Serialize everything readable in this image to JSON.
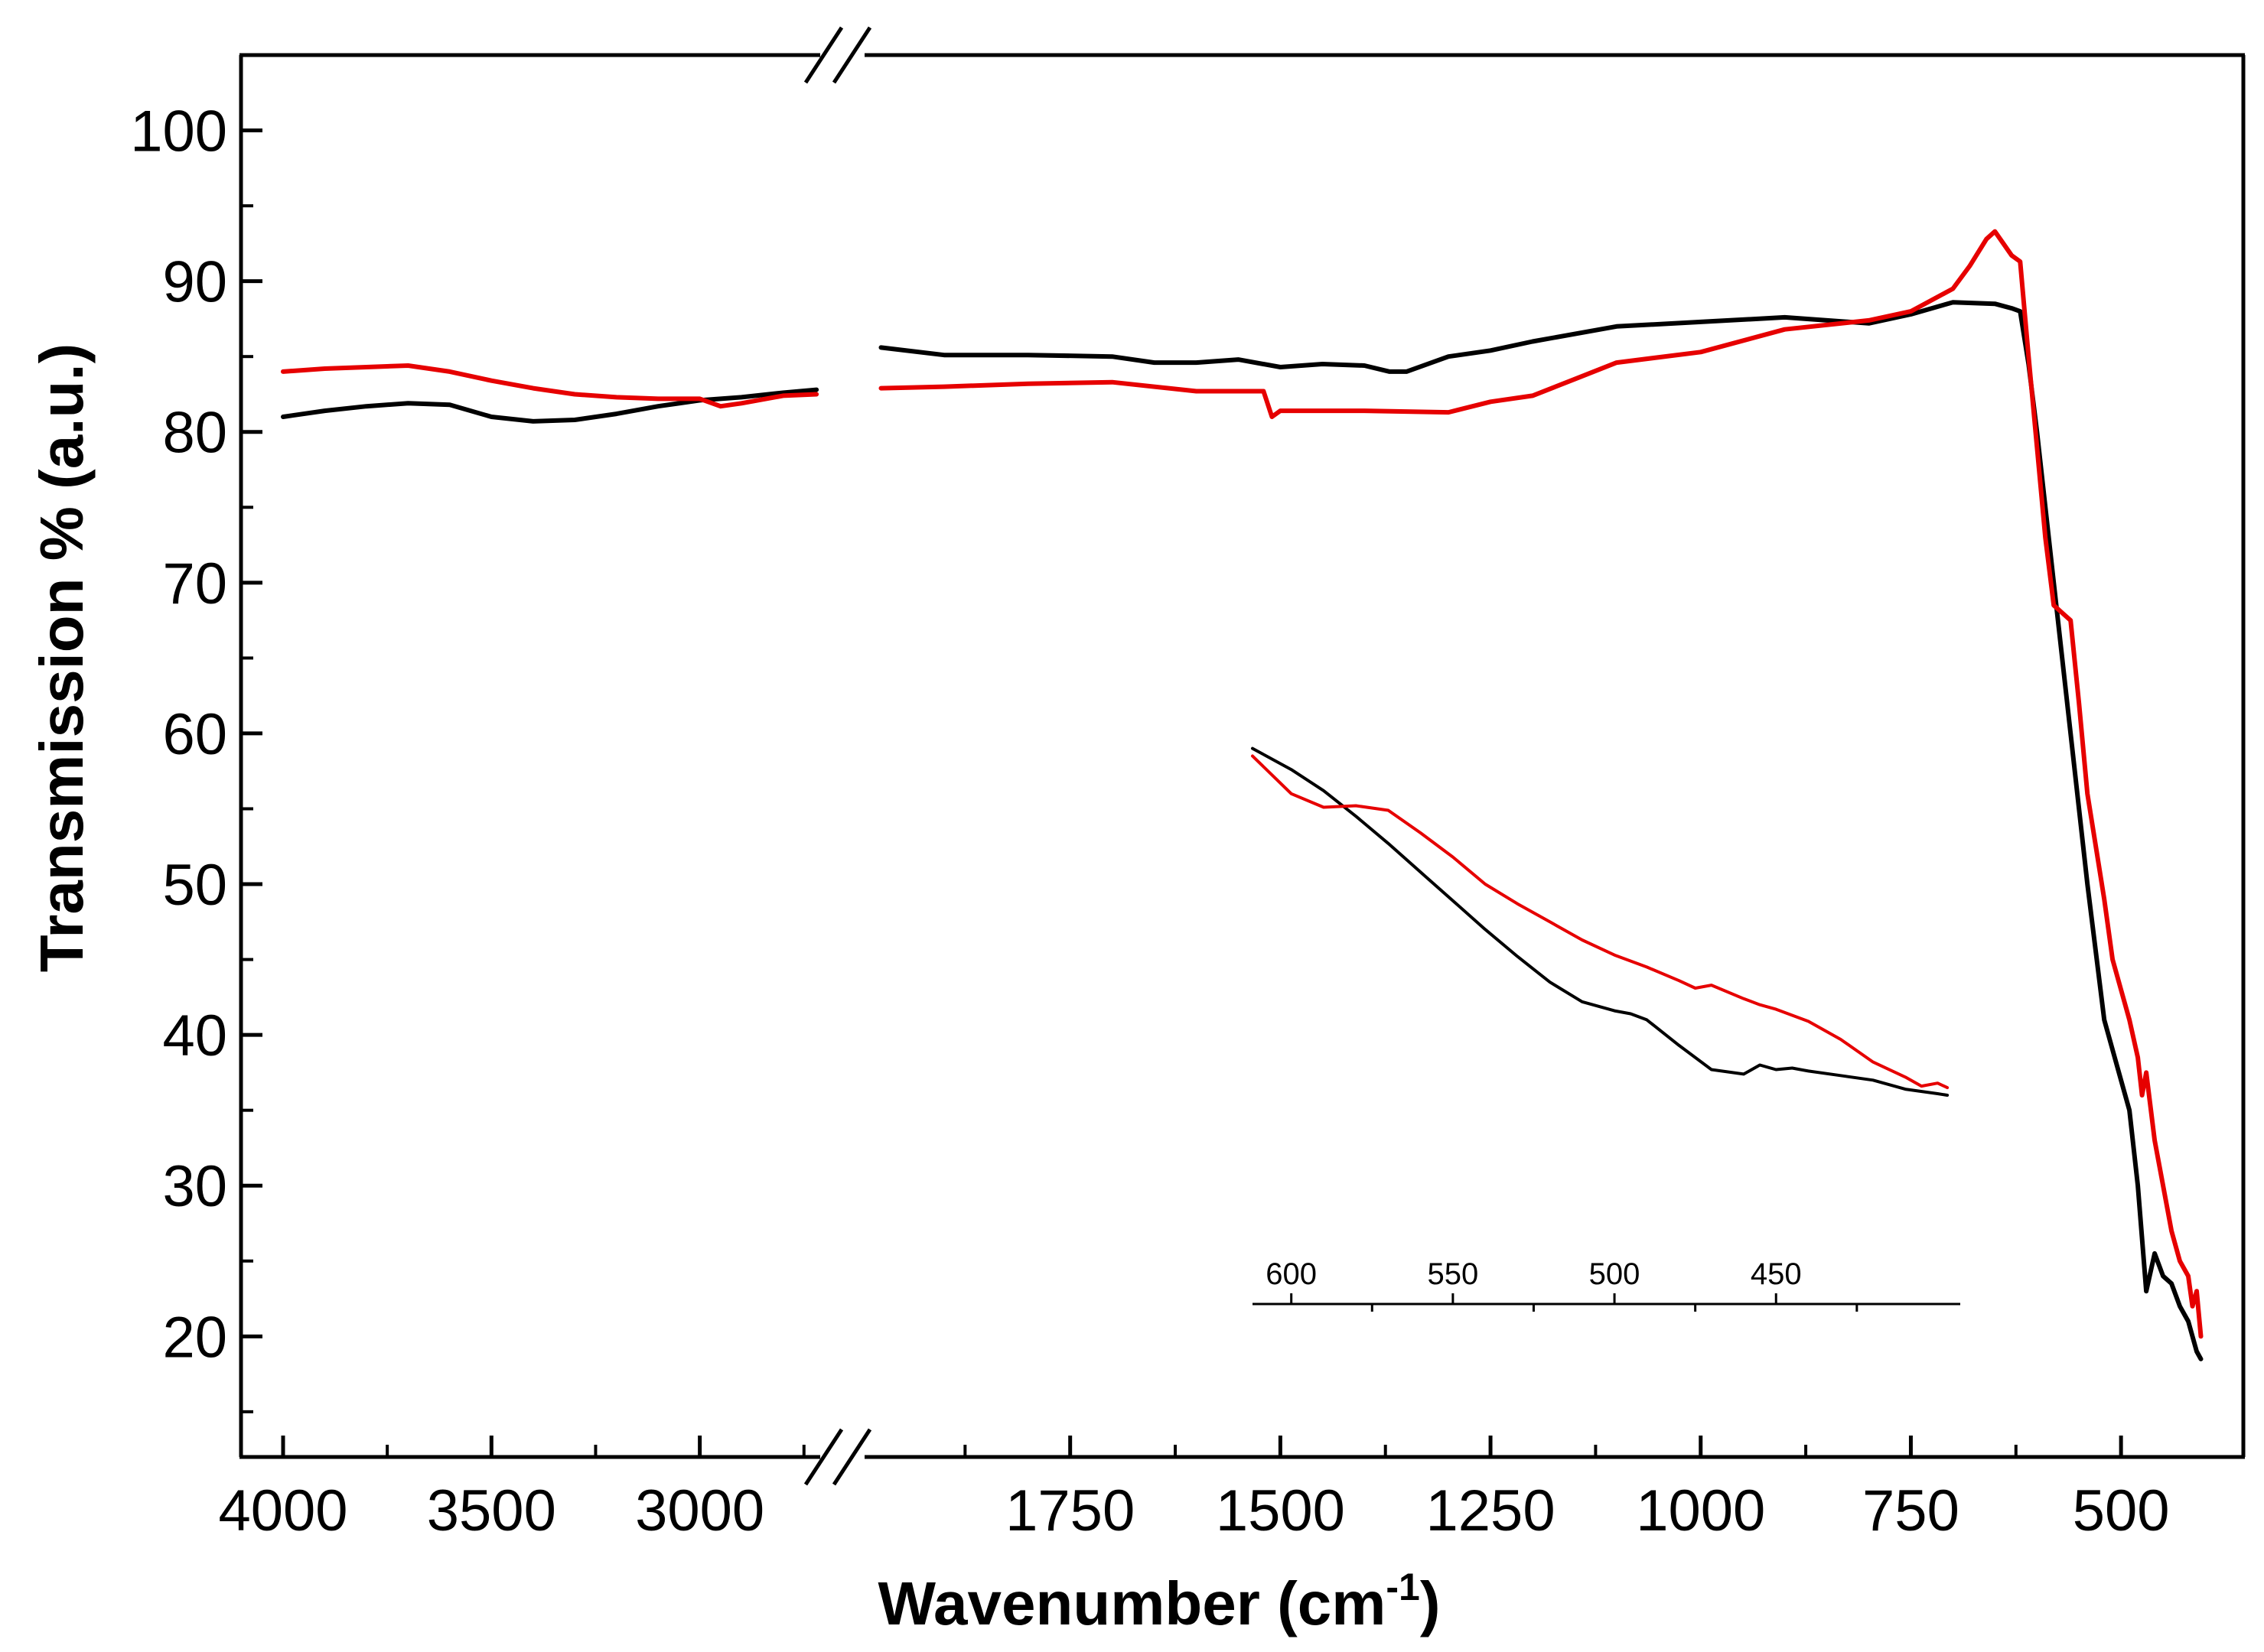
{
  "chart_data": {
    "type": "line",
    "title": "",
    "xlabel": "Wavenumber (cm",
    "xlabel_superscript": "-1",
    "xlabel_suffix": ")",
    "ylabel": "Transmission % (a.u.)",
    "x_axis": "reversed, broken",
    "x_segments": [
      {
        "range": [
          4000,
          2700
        ],
        "ticks": [
          4000,
          3500,
          3000
        ]
      },
      {
        "range": [
          2000,
          400
        ],
        "ticks": [
          1750,
          1500,
          1250,
          1000,
          750,
          500
        ]
      }
    ],
    "ylim": [
      12,
      105
    ],
    "yticks": [
      20,
      30,
      40,
      50,
      60,
      70,
      80,
      90,
      100
    ],
    "grid": false,
    "legend": "none",
    "series": [
      {
        "color": "#000000",
        "segments": [
          {
            "x": [
              4000,
              3900,
              3800,
              3700,
              3600,
              3500,
              3400,
              3300,
              3200,
              3100,
              3000,
              2900,
              2800,
              2720
            ],
            "y": [
              81.0,
              81.4,
              81.7,
              81.9,
              81.8,
              81.0,
              80.7,
              80.8,
              81.2,
              81.7,
              82.1,
              82.3,
              82.6,
              82.8
            ]
          },
          {
            "x": [
              1975,
              1900,
              1800,
              1700,
              1650,
              1600,
              1550,
              1500,
              1450,
              1400,
              1370,
              1350,
              1300,
              1250,
              1200,
              1100,
              1000,
              900,
              800,
              750,
              700,
              650,
              630,
              620,
              610,
              600,
              580,
              560,
              540,
              520,
              505,
              490,
              480,
              470,
              460,
              450,
              440,
              430,
              420,
              410,
              405
            ],
            "y": [
              85.6,
              85.1,
              85.1,
              85.0,
              84.6,
              84.6,
              84.8,
              84.3,
              84.5,
              84.4,
              84.0,
              84.0,
              85.0,
              85.4,
              86.0,
              87.0,
              87.3,
              87.6,
              87.2,
              87.8,
              88.6,
              88.5,
              88.2,
              88.0,
              84.5,
              80.0,
              70.0,
              60.0,
              50.0,
              41.0,
              38.0,
              35.0,
              30.0,
              23.0,
              25.5,
              24.0,
              23.5,
              22.0,
              21.0,
              19.0,
              18.5
            ]
          }
        ]
      },
      {
        "color": "#e60000",
        "segments": [
          {
            "x": [
              4000,
              3900,
              3800,
              3700,
              3600,
              3500,
              3400,
              3300,
              3200,
              3100,
              3000,
              2950,
              2900,
              2800,
              2720
            ],
            "y": [
              84.0,
              84.2,
              84.3,
              84.4,
              84.0,
              83.4,
              82.9,
              82.5,
              82.3,
              82.2,
              82.2,
              81.7,
              81.9,
              82.4,
              82.5
            ]
          },
          {
            "x": [
              1975,
              1900,
              1800,
              1700,
              1600,
              1520,
              1510,
              1500,
              1400,
              1300,
              1250,
              1200,
              1150,
              1100,
              1000,
              900,
              800,
              750,
              700,
              680,
              660,
              650,
              640,
              630,
              620,
              610,
              600,
              590,
              580,
              570,
              560,
              550,
              540,
              520,
              510,
              500,
              490,
              480,
              475,
              470,
              460,
              450,
              440,
              430,
              420,
              415,
              410,
              405
            ],
            "y": [
              82.9,
              83.0,
              83.2,
              83.3,
              82.7,
              82.7,
              81.0,
              81.4,
              81.4,
              81.3,
              82.0,
              82.4,
              83.5,
              84.6,
              85.3,
              86.8,
              87.4,
              88.0,
              89.5,
              91.0,
              92.8,
              93.3,
              92.5,
              91.7,
              91.3,
              85.0,
              79.0,
              73.0,
              68.5,
              68.0,
              67.5,
              62.0,
              56.0,
              49.0,
              45.0,
              43.0,
              41.0,
              38.5,
              36.0,
              37.5,
              33.0,
              30.0,
              27.0,
              25.0,
              24.0,
              22.0,
              23.0,
              20.0
            ]
          }
        ]
      }
    ],
    "inset": {
      "xlim": [
        612,
        393
      ],
      "ticks": [
        600,
        550,
        500,
        450
      ],
      "minor_ticks": [
        575,
        525,
        475,
        425
      ],
      "series": [
        {
          "color": "#000000",
          "x": [
            612,
            600,
            590,
            580,
            570,
            560,
            550,
            540,
            530,
            520,
            510,
            500,
            495,
            490,
            480,
            470,
            460,
            455,
            450,
            445,
            440,
            430,
            420,
            410,
            400,
            397
          ],
          "y": [
            59,
            57.6,
            56.2,
            54.5,
            52.7,
            50.8,
            48.9,
            47.0,
            45.2,
            43.5,
            42.2,
            41.6,
            41.4,
            41.0,
            39.3,
            37.7,
            37.4,
            38.0,
            37.7,
            37.8,
            37.6,
            37.3,
            37.0,
            36.4,
            36.1,
            36.0
          ]
        },
        {
          "color": "#e60000",
          "x": [
            612,
            600,
            590,
            580,
            570,
            560,
            550,
            540,
            530,
            520,
            510,
            500,
            490,
            480,
            475,
            470,
            460,
            455,
            450,
            440,
            430,
            420,
            410,
            405,
            400,
            397
          ],
          "y": [
            58.5,
            56.0,
            55.1,
            55.2,
            54.9,
            53.4,
            51.8,
            50.0,
            48.7,
            47.5,
            46.3,
            45.3,
            44.5,
            43.6,
            43.1,
            43.3,
            42.4,
            42.0,
            41.7,
            40.9,
            39.7,
            38.2,
            37.2,
            36.6,
            36.8,
            36.5
          ]
        }
      ]
    }
  }
}
